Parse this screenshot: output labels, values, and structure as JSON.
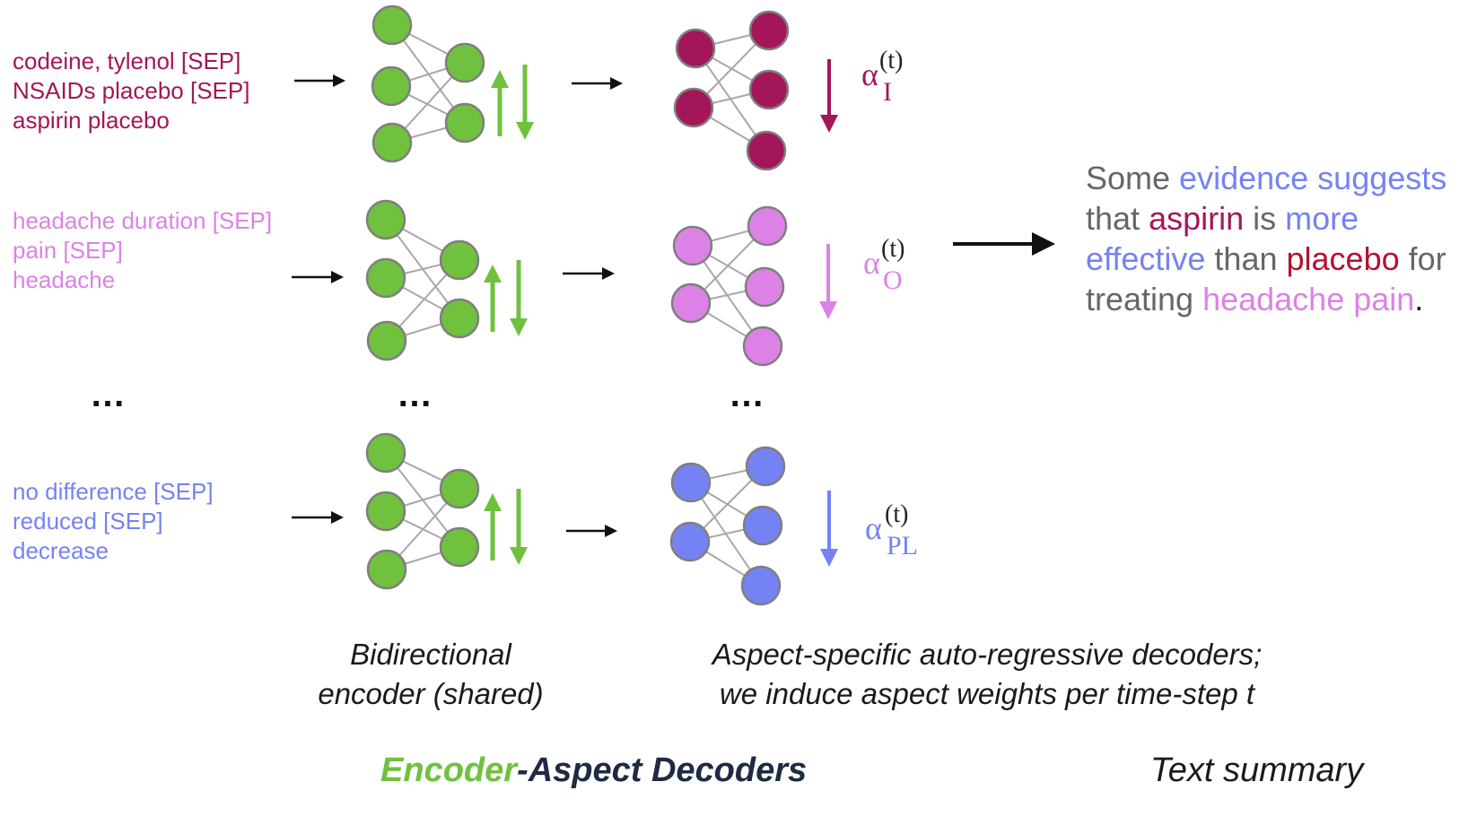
{
  "colors": {
    "encoder_green": "#6fc13e",
    "aspect_I": "#a3165a",
    "aspect_O": "#dc82e6",
    "aspect_PL": "#7582f4",
    "placebo_red": "#b5102e",
    "summary_gray": "#666666",
    "dark_navy": "#1f2a44"
  },
  "rows": [
    {
      "lines": [
        "codeine, tylenol [SEP]",
        "NSAIDs placebo [SEP]",
        "aspirin placebo"
      ],
      "alpha_sub": "I"
    },
    {
      "lines": [
        "headache duration [SEP]",
        "pain [SEP]",
        "headache"
      ],
      "alpha_sub": "O"
    },
    {
      "lines": [
        "no difference [SEP]",
        "reduced [SEP]",
        "decrease"
      ],
      "alpha_sub": "PL"
    }
  ],
  "alpha_symbol": "α",
  "alpha_superscript": "(t)",
  "ellipsis": "…",
  "captions": {
    "encoder": [
      "Bidirectional",
      "encoder (shared)"
    ],
    "decoder": [
      "Aspect-specific auto-regressive decoders;",
      "we induce aspect weights per time-step t"
    ]
  },
  "summary": {
    "segments": [
      {
        "text": "Some ",
        "color": "gray"
      },
      {
        "text": "evidence",
        "color": "PL"
      },
      {
        "text": " ",
        "color": "gray"
      },
      {
        "text": "suggests",
        "color": "PL"
      },
      {
        "text": " that ",
        "color": "gray"
      },
      {
        "text": "aspirin",
        "color": "I"
      },
      {
        "text": " is ",
        "color": "gray"
      },
      {
        "text": "more effective",
        "color": "PL"
      },
      {
        "text": " than ",
        "color": "gray"
      },
      {
        "text": "placebo",
        "color": "red"
      },
      {
        "text": " for treating ",
        "color": "gray"
      },
      {
        "text": "headache pain",
        "color": "O"
      },
      {
        "text": ".",
        "color": "black"
      }
    ]
  },
  "bottom_title": {
    "encoder": "Encoder",
    "dash": "-",
    "decoders": "Aspect Decoders"
  },
  "summary_label": "Text summary"
}
